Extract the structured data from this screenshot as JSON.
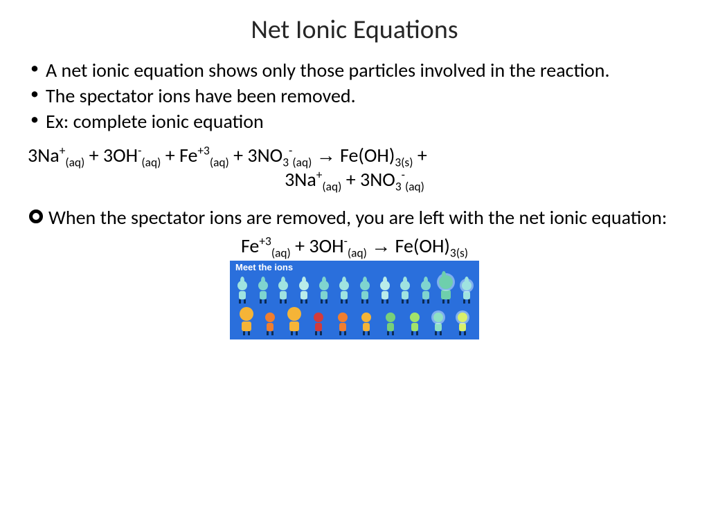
{
  "title": "Net Ionic Equations",
  "bullets": [
    "A net ionic equation shows only those particles involved in the reaction.",
    "The spectator ions have been removed.",
    "Ex: complete ionic equation"
  ],
  "equation1": {
    "line1_html": "3Na<sup>+</sup><sub>(aq)</sub> + 3OH<sup>-</sup><sub>(aq)</sub> + Fe<sup>+3</sup><sub>(aq)</sub> + 3NO<sub>3</sub><sup>-</sup><sub>(aq)</sub>  <span class='arrow'>→</span>  Fe(OH)<sub>3(s)</sub> + ",
    "line2_html": "3Na<sup>+</sup><sub>(aq)</sub> + 3NO<sub>3</sub><sup>-</sup><sub>(aq)</sub>"
  },
  "ring_bullet": "When the spectator ions are removed, you are left with the net ionic equation:",
  "equation2_html": "Fe<sup>+3</sup><sub>(aq)</sub> + 3OH<sup>-</sup><sub>(aq)</sub>   <span class='arrow'>→</span>  Fe(OH)<sub>3(s)</sub>",
  "graphic": {
    "title": "Meet the ions",
    "bg": "#2a6fdc",
    "row1_colors": [
      "#9fe3e0",
      "#7fd4cf",
      "#9fe3e0",
      "#b9ece9",
      "#7fd4cf",
      "#9fe3e0",
      "#7fd4cf",
      "#b9ece9",
      "#9fe3e0",
      "#7fd4cf",
      "#6ecfac",
      "#9fe3e0"
    ],
    "row2_colors": [
      "#f5b437",
      "#f07e2f",
      "#f5b437",
      "#d33b3b",
      "#f07e2f",
      "#f5b437",
      "#78d07a",
      "#a2e36a",
      "#8fe0c4",
      "#d8f06c"
    ]
  },
  "colors": {
    "text": "#000000",
    "background": "#ffffff",
    "title_color": "#262626"
  },
  "fonts": {
    "title_size_pt": 32,
    "body_size_pt": 24
  }
}
